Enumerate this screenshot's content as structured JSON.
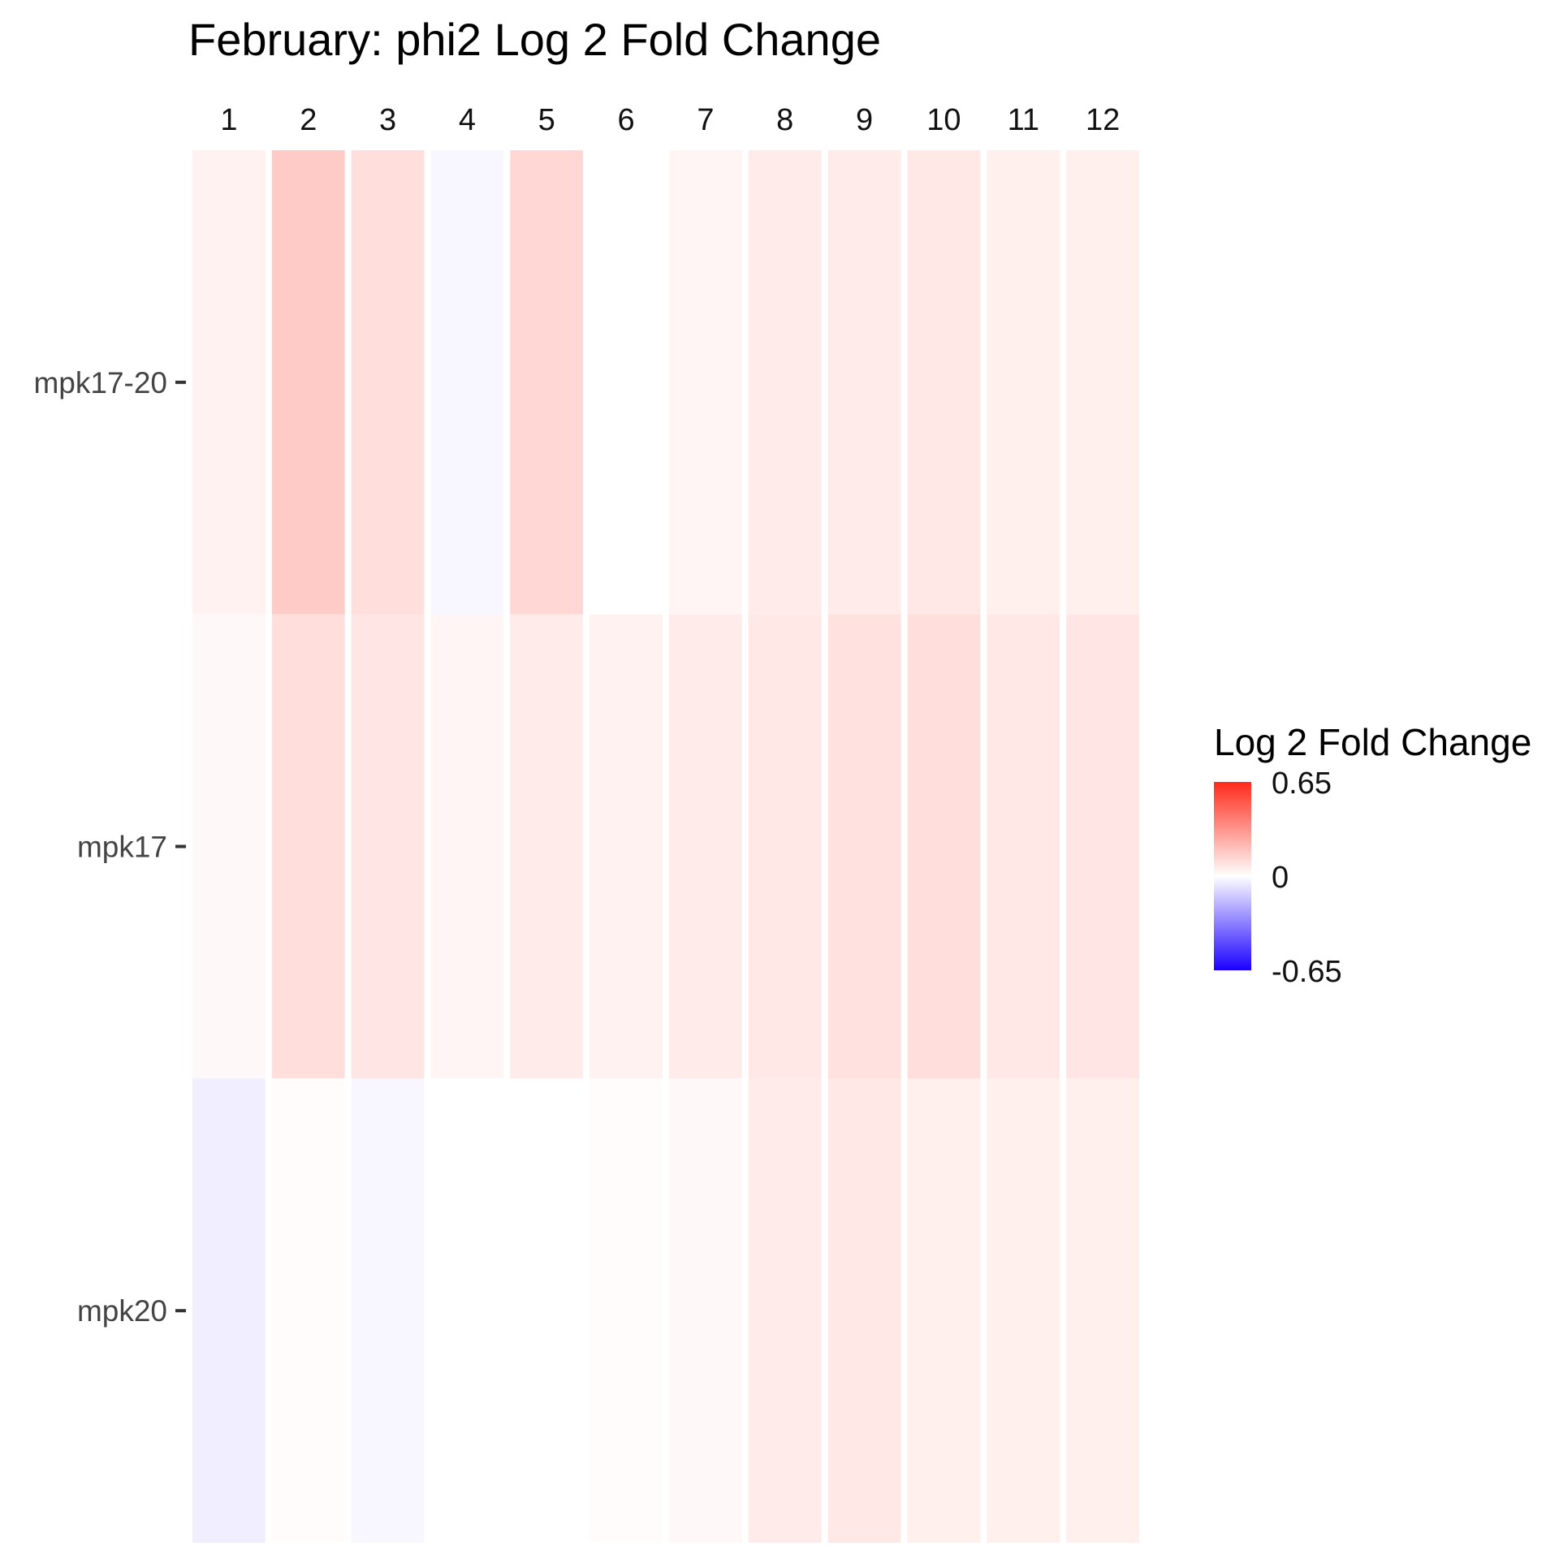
{
  "chart_data": {
    "type": "heatmap",
    "title": "February: phi2 Log 2 Fold Change",
    "columns": [
      "1",
      "2",
      "3",
      "4",
      "5",
      "6",
      "7",
      "8",
      "9",
      "10",
      "11",
      "12"
    ],
    "rows": [
      "mpk17-20",
      "mpk17",
      "mpk20"
    ],
    "values": [
      [
        0.04,
        0.16,
        0.1,
        -0.02,
        0.12,
        0.0,
        0.03,
        0.06,
        0.06,
        0.07,
        0.05,
        0.05
      ],
      [
        0.02,
        0.1,
        0.08,
        0.03,
        0.06,
        0.04,
        0.06,
        0.07,
        0.09,
        0.1,
        0.07,
        0.08
      ],
      [
        -0.04,
        0.01,
        -0.02,
        0.0,
        0.0,
        0.01,
        0.02,
        0.06,
        0.07,
        0.05,
        0.05,
        0.05
      ]
    ],
    "legend": {
      "title": "Log 2 Fold Change",
      "max": 0.65,
      "mid": 0,
      "min": -0.65,
      "labels": [
        "0.65",
        "0",
        "-0.65"
      ],
      "high_color": "#ff2a1a",
      "mid_color": "#ffffff",
      "low_color": "#1a00ff",
      "position": "right"
    }
  }
}
